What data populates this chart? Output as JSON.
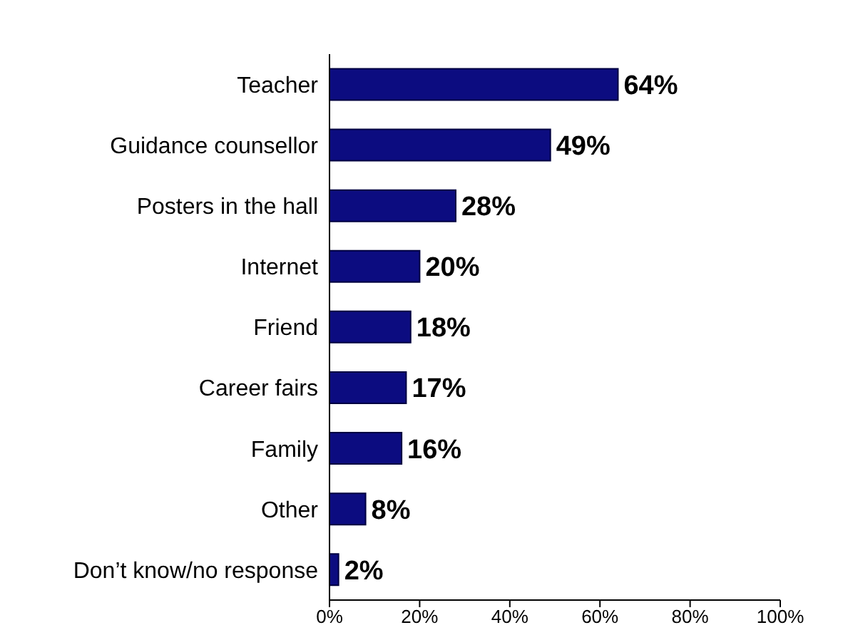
{
  "chart_data": {
    "type": "bar",
    "orientation": "horizontal",
    "categories": [
      "Teacher",
      "Guidance counsellor",
      "Posters in the hall",
      "Internet",
      "Friend",
      "Career fairs",
      "Family",
      "Other",
      "Don’t know/no response"
    ],
    "values": [
      64,
      49,
      28,
      20,
      18,
      17,
      16,
      8,
      2
    ],
    "value_labels": [
      "64%",
      "49%",
      "28%",
      "20%",
      "18%",
      "17%",
      "16%",
      "8%",
      "2%"
    ],
    "color": "#0c0c80",
    "xlim": [
      0,
      100
    ],
    "xticks": [
      {
        "value": 0,
        "label": "0%"
      },
      {
        "value": 20,
        "label": "20%"
      },
      {
        "value": 40,
        "label": "40%"
      },
      {
        "value": 60,
        "label": "60%"
      },
      {
        "value": 80,
        "label": "80%"
      },
      {
        "value": 100,
        "label": "100%"
      }
    ],
    "grid": false,
    "legend": false
  }
}
